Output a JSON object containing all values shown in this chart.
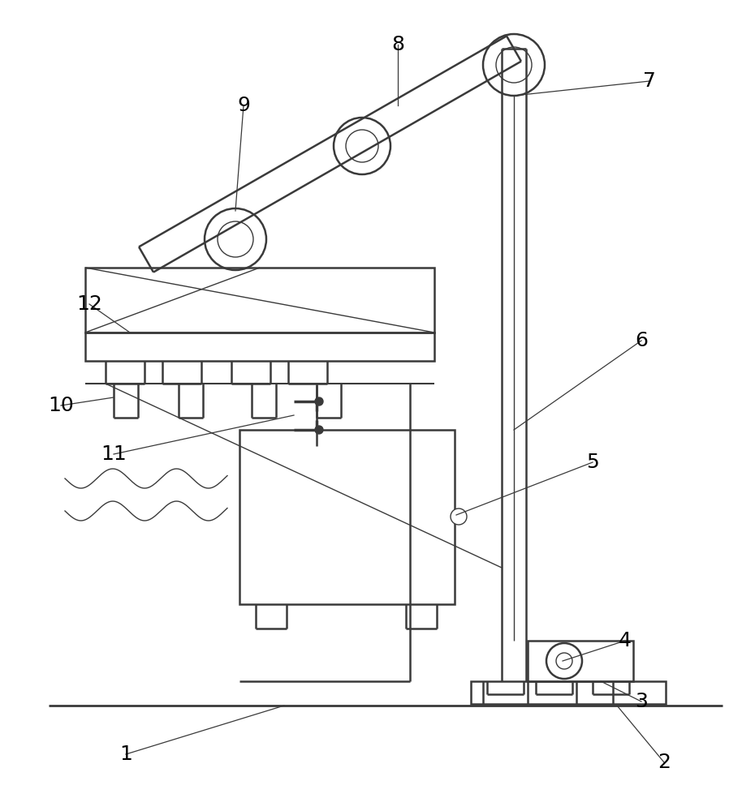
{
  "line_color": "#3a3a3a",
  "bg_color": "#ffffff",
  "label_color": "#000000",
  "lw": 1.8,
  "tlw": 1.0,
  "fig_w": 9.14,
  "fig_h": 10.0
}
